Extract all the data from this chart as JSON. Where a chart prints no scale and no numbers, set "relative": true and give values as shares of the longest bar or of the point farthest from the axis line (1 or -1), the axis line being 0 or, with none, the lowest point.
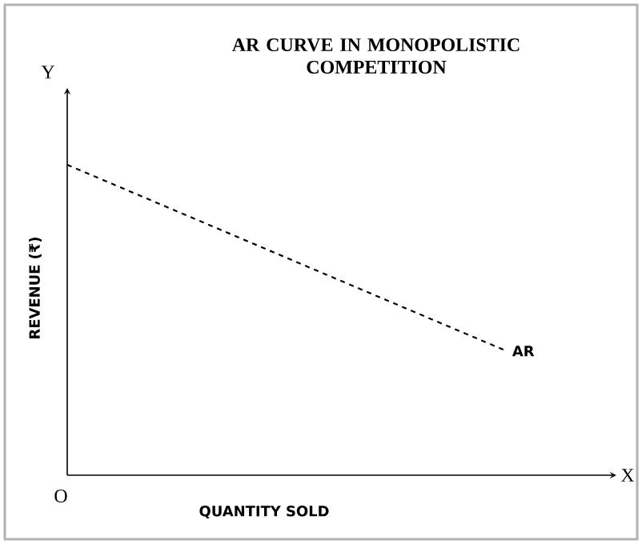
{
  "chart_data": {
    "type": "line",
    "title": "AR CURVE IN MONOPOLISTIC COMPETITION",
    "xlabel": "QUANTITY SOLD",
    "ylabel": "REVENUE (₹)",
    "annotations": [
      "Y",
      "X",
      "O"
    ],
    "categories": [
      null,
      null,
      null,
      null,
      null,
      null
    ],
    "relative": true,
    "line_style": "dashed",
    "marker": "none",
    "series": [
      {
        "name": "AR",
        "color": "#000000",
        "values": [
          1,
          0.85,
          0.7,
          0.55,
          0.4,
          null
        ]
      }
    ]
  }
}
